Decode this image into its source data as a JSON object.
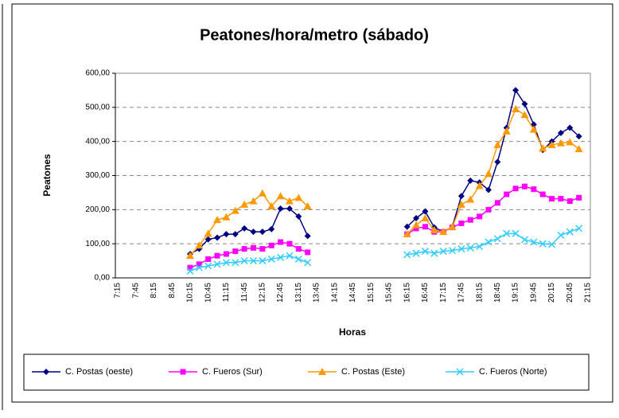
{
  "chart_data": {
    "type": "line",
    "title": "Peatones/hora/metro (sábado)",
    "x_label": "Horas",
    "y_label": "Peatones",
    "categories": [
      "7:15",
      null,
      "7:45",
      null,
      "8:15",
      null,
      "8:45",
      null,
      "10:15",
      null,
      "10:45",
      null,
      "11:15",
      null,
      "11:45",
      null,
      "12:15",
      null,
      "12:45",
      null,
      "13:15",
      null,
      "13:45",
      null,
      "14:15",
      null,
      "14:45",
      null,
      "15:15",
      null,
      "15:45",
      null,
      "16:15",
      null,
      "16:45",
      null,
      "17:15",
      null,
      "17:45",
      null,
      "18:15",
      null,
      "18:45",
      null,
      "19:15",
      null,
      "19:45",
      null,
      "20:15",
      null,
      "20:45",
      null,
      "21:15"
    ],
    "ylim": [
      0,
      600
    ],
    "yticks": [
      {
        "value": 0,
        "label": "0,00"
      },
      {
        "value": 100,
        "label": "100,00"
      },
      {
        "value": 200,
        "label": "200,00"
      },
      {
        "value": 300,
        "label": "300,00"
      },
      {
        "value": 400,
        "label": "400,00"
      },
      {
        "value": 500,
        "label": "500,00"
      },
      {
        "value": 600,
        "label": "600,00"
      }
    ],
    "grid": true,
    "legend": "bottom",
    "series": [
      {
        "name": "C. Postas (oeste)",
        "color": "#000080",
        "marker": "diamond",
        "values": [
          null,
          null,
          null,
          null,
          null,
          null,
          null,
          null,
          70,
          85,
          113,
          118,
          128,
          128,
          145,
          135,
          135,
          143,
          203,
          203,
          180,
          123,
          null,
          null,
          null,
          null,
          null,
          null,
          null,
          null,
          null,
          null,
          150,
          175,
          195,
          148,
          135,
          150,
          240,
          285,
          280,
          258,
          340,
          440,
          550,
          510,
          450,
          375,
          400,
          425,
          440,
          415,
          null
        ]
      },
      {
        "name": "C. Fueros (Sur)",
        "color": "#ff00ff",
        "marker": "square",
        "values": [
          null,
          null,
          null,
          null,
          null,
          null,
          null,
          null,
          30,
          40,
          55,
          65,
          70,
          78,
          85,
          88,
          85,
          95,
          105,
          100,
          85,
          75,
          null,
          null,
          null,
          null,
          null,
          null,
          null,
          null,
          null,
          null,
          128,
          145,
          150,
          135,
          135,
          148,
          160,
          170,
          180,
          200,
          220,
          245,
          262,
          268,
          260,
          245,
          232,
          232,
          225,
          235,
          null
        ]
      },
      {
        "name": "C. Postas (Este)",
        "color": "#ff9900",
        "marker": "triangle",
        "values": [
          null,
          null,
          null,
          null,
          null,
          null,
          null,
          null,
          65,
          95,
          130,
          170,
          178,
          197,
          215,
          225,
          248,
          210,
          240,
          225,
          235,
          210,
          null,
          null,
          null,
          null,
          null,
          null,
          null,
          null,
          null,
          null,
          128,
          155,
          175,
          140,
          135,
          150,
          215,
          230,
          270,
          305,
          390,
          430,
          495,
          478,
          435,
          380,
          390,
          395,
          398,
          378,
          null
        ]
      },
      {
        "name": "C. Fueros (Norte)",
        "color": "#33ccff",
        "marker": "x",
        "values": [
          null,
          null,
          null,
          null,
          null,
          null,
          null,
          null,
          20,
          30,
          35,
          40,
          45,
          45,
          50,
          50,
          50,
          55,
          60,
          65,
          55,
          45,
          null,
          null,
          null,
          null,
          null,
          null,
          null,
          null,
          null,
          null,
          68,
          72,
          78,
          72,
          78,
          80,
          85,
          88,
          92,
          105,
          115,
          130,
          130,
          112,
          105,
          100,
          98,
          125,
          135,
          145,
          null
        ]
      }
    ]
  }
}
